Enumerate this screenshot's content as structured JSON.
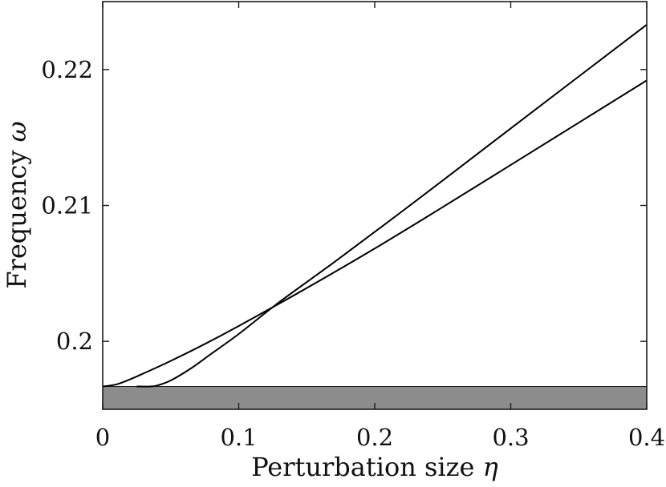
{
  "chart_data": {
    "type": "line",
    "title": "",
    "xlabel": "Perturbation size",
    "xlabel_symbol": "η",
    "ylabel": "Frequency",
    "ylabel_symbol": "ω",
    "xlim": [
      0,
      0.4
    ],
    "ylim": [
      0.195,
      0.225
    ],
    "x_ticks": [
      {
        "value": 0,
        "label": "0"
      },
      {
        "value": 0.1,
        "label": "0.1"
      },
      {
        "value": 0.2,
        "label": "0.2"
      },
      {
        "value": 0.3,
        "label": "0.3"
      },
      {
        "value": 0.4,
        "label": "0.4"
      }
    ],
    "y_ticks": [
      {
        "value": 0.2,
        "label": "0.2"
      },
      {
        "value": 0.21,
        "label": "0.21"
      },
      {
        "value": 0.22,
        "label": "0.22"
      }
    ],
    "grid": false,
    "legend": "none",
    "shaded_band": {
      "y_from": 0.195,
      "y_to": 0.19668,
      "color": "#8c8c8c"
    },
    "line_color": "#000000",
    "series": [
      {
        "x": [
          0,
          0.01,
          0.02,
          0.03,
          0.05,
          0.075,
          0.1,
          0.15,
          0.2,
          0.25,
          0.3,
          0.35,
          0.4
        ],
        "values": [
          0.19668,
          0.19683,
          0.1972,
          0.19764,
          0.19856,
          0.1998,
          0.20113,
          0.20392,
          0.20683,
          0.20988,
          0.21298,
          0.21609,
          0.2192
        ]
      },
      {
        "x": [
          0.025,
          0.035,
          0.04,
          0.05,
          0.065,
          0.08,
          0.1,
          0.13,
          0.17,
          0.21,
          0.25,
          0.3,
          0.35,
          0.4
        ],
        "values": [
          0.19668,
          0.19668,
          0.19675,
          0.19712,
          0.19802,
          0.1991,
          0.20054,
          0.2029,
          0.20581,
          0.2088,
          0.21184,
          0.21567,
          0.21949,
          0.2233
        ]
      }
    ]
  }
}
